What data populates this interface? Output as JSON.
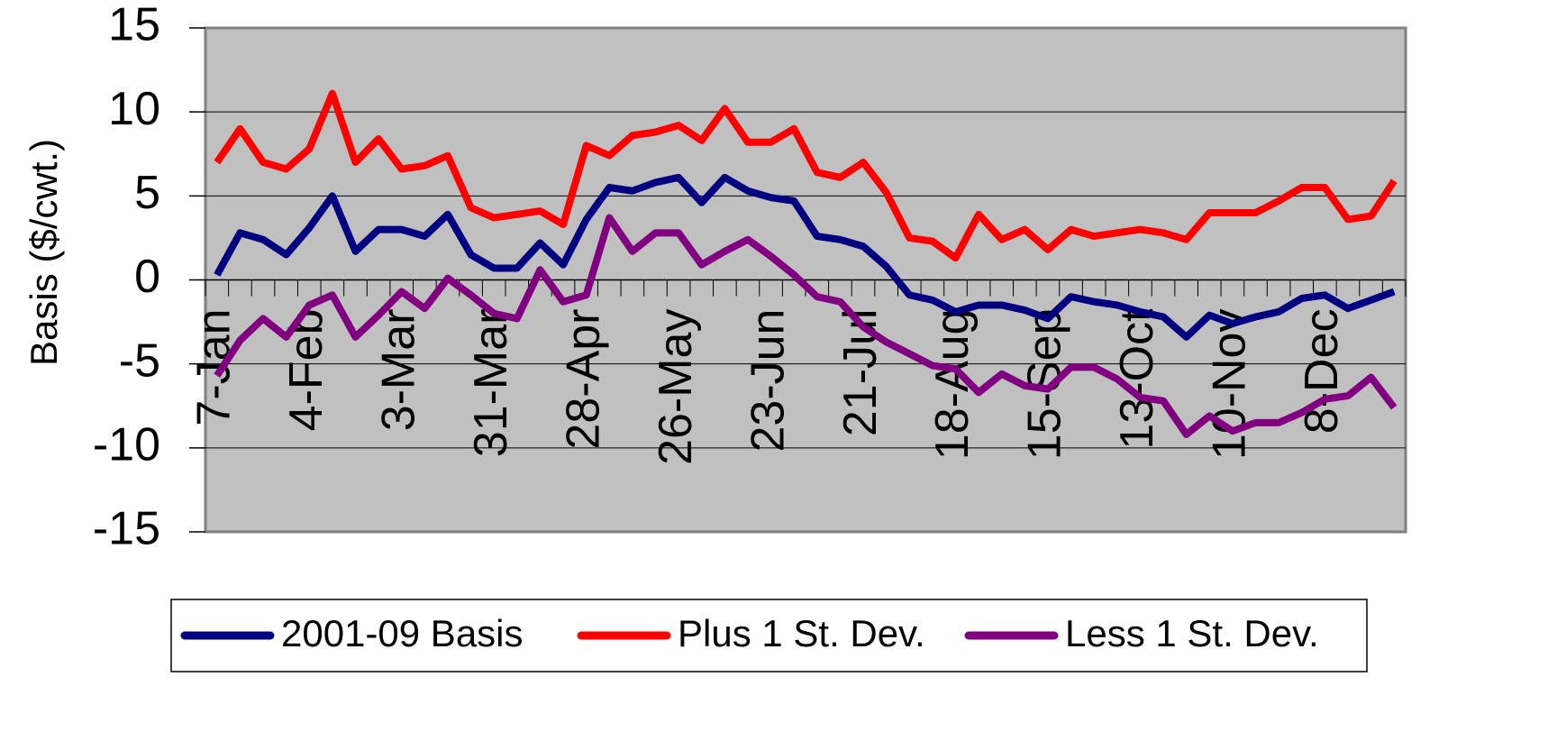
{
  "chart_data": {
    "type": "line",
    "y_label": "Basis ($/cwt.)",
    "categories": [
      "7-Jan",
      null,
      null,
      null,
      "4-Feb",
      null,
      null,
      null,
      "3-Mar",
      null,
      null,
      null,
      "31-Mar",
      null,
      null,
      null,
      "28-Apr",
      null,
      null,
      null,
      "26-May",
      null,
      null,
      null,
      "23-Jun",
      null,
      null,
      null,
      "21-Jul",
      null,
      null,
      null,
      "18-Aug",
      null,
      null,
      null,
      "15-Sep",
      null,
      null,
      null,
      "13-Oct",
      null,
      null,
      null,
      "10-Nov",
      null,
      null,
      null,
      "8-Dec",
      null,
      null,
      null
    ],
    "series": [
      {
        "name": "2001-09 Basis",
        "color": "#000080",
        "values": [
          0.3,
          2.8,
          2.4,
          1.5,
          3.1,
          5.0,
          1.7,
          3.0,
          3.0,
          2.6,
          3.9,
          1.5,
          0.7,
          0.7,
          2.2,
          0.9,
          3.6,
          5.5,
          5.3,
          5.8,
          6.1,
          4.6,
          6.1,
          5.3,
          4.9,
          4.7,
          2.6,
          2.4,
          2.0,
          0.8,
          -0.9,
          -1.2,
          -1.9,
          -1.5,
          -1.5,
          -1.8,
          -2.3,
          -1.0,
          -1.3,
          -1.5,
          -1.9,
          -2.2,
          -3.4,
          -2.1,
          -2.6,
          -2.2,
          -1.9,
          -1.1,
          -0.9,
          -1.7,
          -1.2,
          -0.7
        ]
      },
      {
        "name": "Plus 1 St. Dev.",
        "color": "#ff0000",
        "values": [
          7.0,
          9.0,
          7.0,
          6.6,
          7.8,
          11.1,
          7.0,
          8.4,
          6.6,
          6.8,
          7.4,
          4.3,
          3.7,
          3.9,
          4.1,
          3.3,
          8.0,
          7.4,
          8.6,
          8.8,
          9.2,
          8.3,
          10.2,
          8.2,
          8.2,
          9.0,
          6.4,
          6.1,
          7.0,
          5.2,
          2.5,
          2.3,
          1.3,
          3.9,
          2.4,
          3.0,
          1.8,
          3.0,
          2.6,
          2.8,
          3.0,
          2.8,
          2.4,
          4.0,
          4.0,
          4.0,
          4.7,
          5.5,
          5.5,
          3.6,
          3.8,
          5.9
        ]
      },
      {
        "name": "Less 1 St. Dev.",
        "color": "#800080",
        "values": [
          -5.7,
          -3.6,
          -2.3,
          -3.4,
          -1.5,
          -0.9,
          -3.4,
          -2.1,
          -0.7,
          -1.7,
          0.1,
          -0.9,
          -2.0,
          -2.3,
          0.6,
          -1.3,
          -0.9,
          3.7,
          1.7,
          2.8,
          2.8,
          0.9,
          1.7,
          2.4,
          1.4,
          0.3,
          -1.0,
          -1.3,
          -2.8,
          -3.7,
          -4.4,
          -5.1,
          -5.3,
          -6.7,
          -5.6,
          -6.3,
          -6.5,
          -5.2,
          -5.2,
          -5.9,
          -7.0,
          -7.2,
          -9.2,
          -8.1,
          -9.0,
          -8.5,
          -8.5,
          -7.9,
          -7.1,
          -6.9,
          -5.8,
          -7.6
        ]
      }
    ],
    "ylim": [
      -15,
      15
    ],
    "yticks": [
      -15,
      -10,
      -5,
      0,
      5,
      10,
      15
    ],
    "grid": true,
    "legend": "bottom",
    "plot_background": "#c0c0c0"
  }
}
